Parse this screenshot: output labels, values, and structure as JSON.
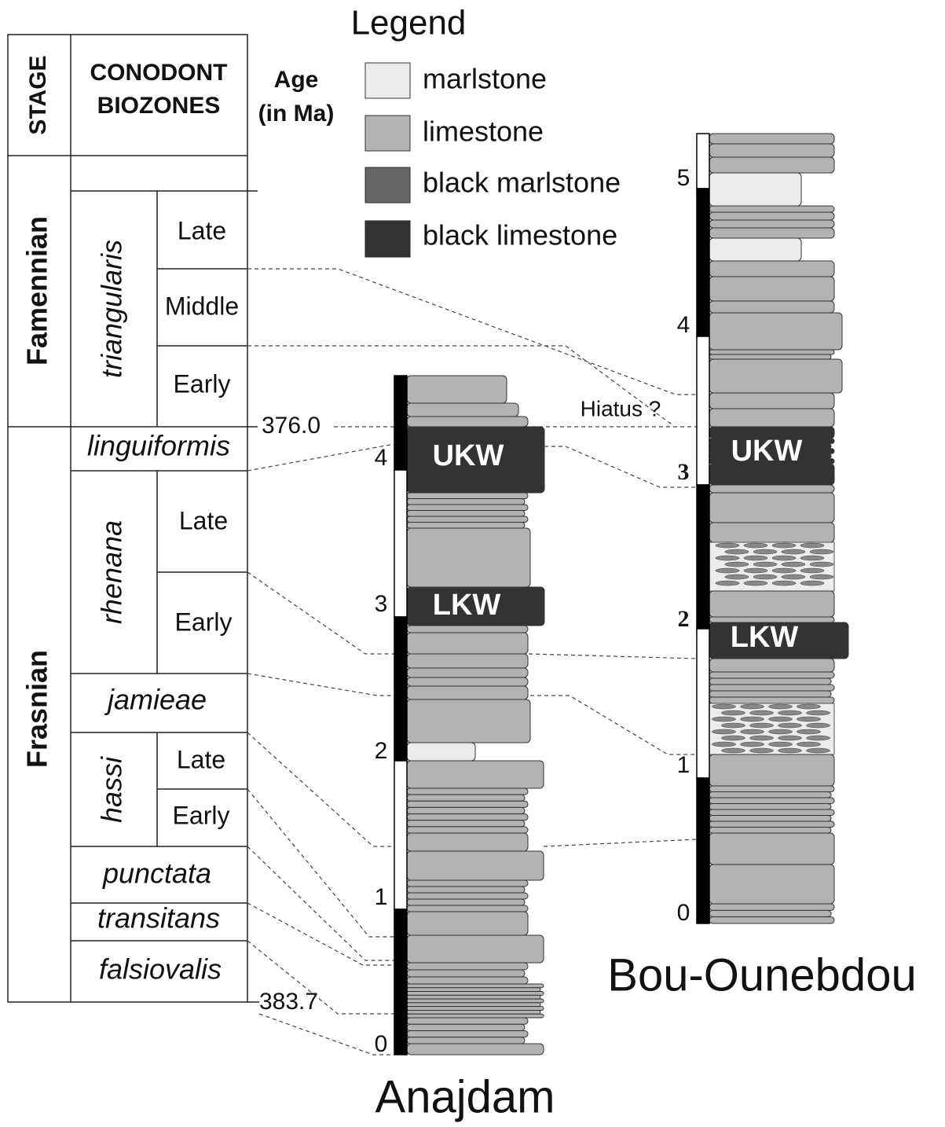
{
  "legend": {
    "title": "Legend",
    "items": [
      "marlstone",
      "limestone",
      "black marlstone",
      "black limestone"
    ]
  },
  "table": {
    "headers": {
      "stage": "STAGE",
      "biozones": [
        "CONODONT",
        "BIOZONES"
      ],
      "age": [
        "Age",
        "(in Ma)"
      ]
    },
    "stages": [
      "Famennian",
      "Frasnian"
    ],
    "biozones": {
      "triangularis": {
        "name": "triangularis",
        "subzones": [
          "Late",
          "Middle",
          "Early"
        ]
      },
      "linguiformis": "linguiformis",
      "rhenana": {
        "name": "rhenana",
        "subzones": [
          "Late",
          "Early"
        ]
      },
      "jamieae": "jamieae",
      "hassi": {
        "name": "hassi",
        "subzones": [
          "Late",
          "Early"
        ]
      },
      "punctata": "punctata",
      "transitans": "transitans",
      "falsiovalis": "falsiovalis"
    },
    "ages": [
      "376.0",
      "383.7"
    ]
  },
  "sections": [
    {
      "name": "Anajdam",
      "scale": [
        "0",
        "1",
        "2",
        "3",
        "4"
      ],
      "markers": [
        "UKW",
        "LKW"
      ]
    },
    {
      "name": "Bou-Ounebdou",
      "scale": [
        "0",
        "1",
        "2",
        "3",
        "4",
        "5"
      ],
      "markers": [
        "UKW",
        "LKW"
      ],
      "note": "Hiatus ?"
    }
  ]
}
